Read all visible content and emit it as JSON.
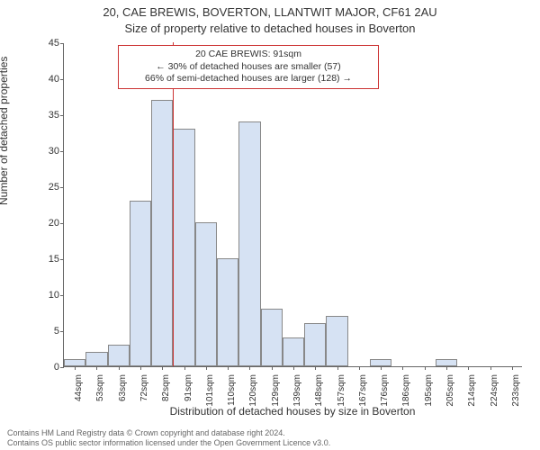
{
  "header": {
    "address": "20, CAE BREWIS, BOVERTON, LLANTWIT MAJOR, CF61 2AU",
    "subtitle": "Size of property relative to detached houses in Boverton"
  },
  "chart": {
    "type": "histogram",
    "ylabel": "Number of detached properties",
    "xlabel": "Distribution of detached houses by size in Boverton",
    "ylim": [
      0,
      45
    ],
    "ytick_step": 5,
    "yticks": [
      0,
      5,
      10,
      15,
      20,
      25,
      30,
      35,
      40,
      45
    ],
    "categories": [
      "44sqm",
      "53sqm",
      "63sqm",
      "72sqm",
      "82sqm",
      "91sqm",
      "101sqm",
      "110sqm",
      "120sqm",
      "129sqm",
      "139sqm",
      "148sqm",
      "157sqm",
      "167sqm",
      "176sqm",
      "186sqm",
      "195sqm",
      "205sqm",
      "214sqm",
      "224sqm",
      "233sqm"
    ],
    "values": [
      1,
      2,
      3,
      23,
      37,
      33,
      20,
      15,
      34,
      8,
      4,
      6,
      7,
      0,
      1,
      0,
      0,
      1,
      0,
      0,
      0
    ],
    "bar_fill": "#d6e2f3",
    "bar_border": "#888888",
    "axis_color": "#666666",
    "background_color": "#ffffff",
    "label_fontsize": 12,
    "tick_fontsize": 11,
    "bar_width_ratio": 1.0,
    "marker": {
      "index_after_category": 4,
      "color": "#cc3333",
      "annotation": {
        "line1": "20 CAE BREWIS: 91sqm",
        "line2": "← 30% of detached houses are smaller (57)",
        "line3": "66% of semi-detached houses are larger (128) →"
      }
    }
  },
  "footer": {
    "line1": "Contains HM Land Registry data © Crown copyright and database right 2024.",
    "line2": "Contains OS public sector information licensed under the Open Government Licence v3.0."
  }
}
